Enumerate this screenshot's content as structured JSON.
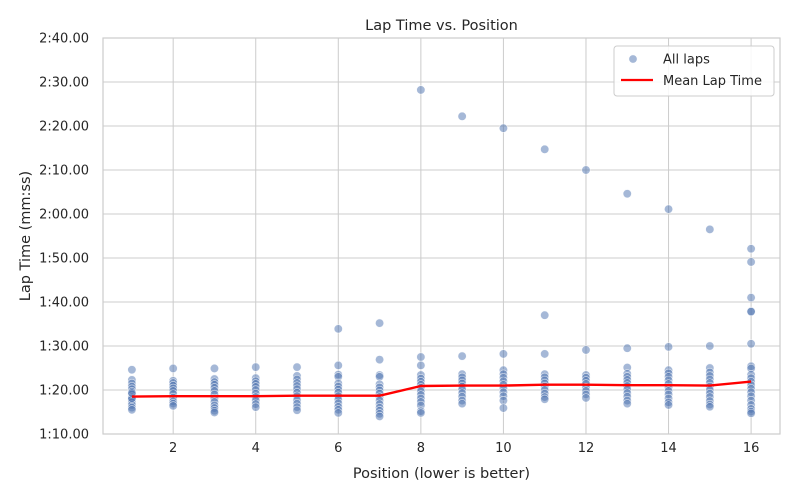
{
  "chart_data": {
    "type": "scatter",
    "title": "Lap Time vs. Position",
    "xlabel": "Position (lower is better)",
    "ylabel": "Lap Time (mm:ss)",
    "xlim": [
      0.3,
      16.7
    ],
    "ylim": [
      70,
      160
    ],
    "x_ticks": [
      2,
      4,
      6,
      8,
      10,
      12,
      14,
      16
    ],
    "y_ticks": [
      {
        "value": 70,
        "label": "1:10.00"
      },
      {
        "value": 80,
        "label": "1:20.00"
      },
      {
        "value": 90,
        "label": "1:30.00"
      },
      {
        "value": 100,
        "label": "1:40.00"
      },
      {
        "value": 110,
        "label": "1:50.00"
      },
      {
        "value": 120,
        "label": "2:00.00"
      },
      {
        "value": 130,
        "label": "2:10.00"
      },
      {
        "value": 140,
        "label": "2:20.00"
      },
      {
        "value": 150,
        "label": "2:30.00"
      },
      {
        "value": 160,
        "label": "2:40.00"
      }
    ],
    "grid": true,
    "legend": {
      "position": "top-right",
      "entries": [
        {
          "label": "All laps",
          "kind": "marker",
          "color": "#4c72b0"
        },
        {
          "label": "Mean Lap Time",
          "kind": "line",
          "color": "#ff0000"
        }
      ]
    },
    "series": [
      {
        "name": "All laps",
        "kind": "scatter",
        "color": "#4c72b0",
        "points": [
          [
            1,
            84.6
          ],
          [
            1,
            82.3
          ],
          [
            1,
            81.5
          ],
          [
            1,
            80.8
          ],
          [
            1,
            80.2
          ],
          [
            1,
            79.6
          ],
          [
            1,
            79.0
          ],
          [
            1,
            78.4
          ],
          [
            1,
            77.8
          ],
          [
            1,
            77.2
          ],
          [
            1,
            76.6
          ],
          [
            1,
            76.0
          ],
          [
            1,
            75.5
          ],
          [
            1,
            78.1
          ],
          [
            1,
            79.3
          ],
          [
            2,
            84.9
          ],
          [
            2,
            82.1
          ],
          [
            2,
            81.6
          ],
          [
            2,
            81.0
          ],
          [
            2,
            80.4
          ],
          [
            2,
            79.8
          ],
          [
            2,
            79.1
          ],
          [
            2,
            78.3
          ],
          [
            2,
            77.4
          ],
          [
            2,
            76.9
          ],
          [
            2,
            76.4
          ],
          [
            3,
            84.9
          ],
          [
            3,
            82.5
          ],
          [
            3,
            81.8
          ],
          [
            3,
            81.2
          ],
          [
            3,
            80.5
          ],
          [
            3,
            79.8
          ],
          [
            3,
            79.0
          ],
          [
            3,
            78.1
          ],
          [
            3,
            77.3
          ],
          [
            3,
            76.5
          ],
          [
            3,
            75.9
          ],
          [
            3,
            75.3
          ],
          [
            3,
            74.9
          ],
          [
            4,
            85.2
          ],
          [
            4,
            82.7
          ],
          [
            4,
            82.0
          ],
          [
            4,
            81.4
          ],
          [
            4,
            80.7
          ],
          [
            4,
            80.0
          ],
          [
            4,
            79.2
          ],
          [
            4,
            78.4
          ],
          [
            4,
            77.6
          ],
          [
            4,
            76.8
          ],
          [
            4,
            76.1
          ],
          [
            5,
            85.2
          ],
          [
            5,
            83.2
          ],
          [
            5,
            82.4
          ],
          [
            5,
            81.6
          ],
          [
            5,
            80.9
          ],
          [
            5,
            80.2
          ],
          [
            5,
            79.4
          ],
          [
            5,
            78.6
          ],
          [
            5,
            77.7
          ],
          [
            5,
            76.9
          ],
          [
            5,
            76.1
          ],
          [
            5,
            75.4
          ],
          [
            6,
            93.9
          ],
          [
            6,
            85.6
          ],
          [
            6,
            83.5
          ],
          [
            6,
            83.0
          ],
          [
            6,
            81.5
          ],
          [
            6,
            80.8
          ],
          [
            6,
            80.1
          ],
          [
            6,
            79.4
          ],
          [
            6,
            78.6
          ],
          [
            6,
            77.8
          ],
          [
            6,
            77.0
          ],
          [
            6,
            76.2
          ],
          [
            6,
            75.5
          ],
          [
            6,
            74.8
          ],
          [
            7,
            95.2
          ],
          [
            7,
            86.9
          ],
          [
            7,
            83.4
          ],
          [
            7,
            83.0
          ],
          [
            7,
            81.3
          ],
          [
            7,
            80.6
          ],
          [
            7,
            79.9
          ],
          [
            7,
            79.2
          ],
          [
            7,
            78.4
          ],
          [
            7,
            77.6
          ],
          [
            7,
            76.8
          ],
          [
            7,
            76.0
          ],
          [
            7,
            75.3
          ],
          [
            7,
            74.6
          ],
          [
            7,
            74.0
          ],
          [
            8,
            148.2
          ],
          [
            8,
            87.5
          ],
          [
            8,
            85.6
          ],
          [
            8,
            83.4
          ],
          [
            8,
            82.6
          ],
          [
            8,
            81.9
          ],
          [
            8,
            81.2
          ],
          [
            8,
            80.5
          ],
          [
            8,
            79.7
          ],
          [
            8,
            78.9
          ],
          [
            8,
            78.1
          ],
          [
            8,
            77.3
          ],
          [
            8,
            76.5
          ],
          [
            8,
            75.2
          ],
          [
            8,
            74.8
          ],
          [
            9,
            142.2
          ],
          [
            9,
            87.7
          ],
          [
            9,
            83.6
          ],
          [
            9,
            82.9
          ],
          [
            9,
            82.2
          ],
          [
            9,
            81.5
          ],
          [
            9,
            80.8
          ],
          [
            9,
            80.1
          ],
          [
            9,
            79.3
          ],
          [
            9,
            78.5
          ],
          [
            9,
            77.6
          ],
          [
            9,
            76.9
          ],
          [
            10,
            139.5
          ],
          [
            10,
            88.2
          ],
          [
            10,
            84.5
          ],
          [
            10,
            83.6
          ],
          [
            10,
            82.8
          ],
          [
            10,
            82.0
          ],
          [
            10,
            81.2
          ],
          [
            10,
            80.4
          ],
          [
            10,
            79.5
          ],
          [
            10,
            78.6
          ],
          [
            10,
            77.6
          ],
          [
            10,
            75.9
          ],
          [
            11,
            134.7
          ],
          [
            11,
            97.0
          ],
          [
            11,
            88.2
          ],
          [
            11,
            83.6
          ],
          [
            11,
            82.9
          ],
          [
            11,
            82.2
          ],
          [
            11,
            81.5
          ],
          [
            11,
            80.8
          ],
          [
            11,
            80.0
          ],
          [
            11,
            79.2
          ],
          [
            11,
            78.4
          ],
          [
            11,
            77.9
          ],
          [
            12,
            130.0
          ],
          [
            12,
            89.1
          ],
          [
            12,
            83.4
          ],
          [
            12,
            82.8
          ],
          [
            12,
            82.1
          ],
          [
            12,
            81.4
          ],
          [
            12,
            80.6
          ],
          [
            12,
            79.8
          ],
          [
            12,
            79.0
          ],
          [
            12,
            78.2
          ],
          [
            13,
            124.6
          ],
          [
            13,
            89.5
          ],
          [
            13,
            85.1
          ],
          [
            13,
            83.7
          ],
          [
            13,
            83.0
          ],
          [
            13,
            82.3
          ],
          [
            13,
            81.6
          ],
          [
            13,
            80.9
          ],
          [
            13,
            80.1
          ],
          [
            13,
            79.3
          ],
          [
            13,
            78.5
          ],
          [
            13,
            77.6
          ],
          [
            13,
            76.9
          ],
          [
            14,
            121.1
          ],
          [
            14,
            89.8
          ],
          [
            14,
            84.5
          ],
          [
            14,
            83.8
          ],
          [
            14,
            83.0
          ],
          [
            14,
            82.2
          ],
          [
            14,
            81.4
          ],
          [
            14,
            80.6
          ],
          [
            14,
            79.8
          ],
          [
            14,
            79.0
          ],
          [
            14,
            78.1
          ],
          [
            14,
            77.2
          ],
          [
            14,
            76.6
          ],
          [
            15,
            116.5
          ],
          [
            15,
            90.0
          ],
          [
            15,
            85.0
          ],
          [
            15,
            84.0
          ],
          [
            15,
            83.2
          ],
          [
            15,
            82.4
          ],
          [
            15,
            81.6
          ],
          [
            15,
            80.8
          ],
          [
            15,
            80.0
          ],
          [
            15,
            79.2
          ],
          [
            15,
            78.4
          ],
          [
            15,
            77.5
          ],
          [
            15,
            76.7
          ],
          [
            15,
            76.2
          ],
          [
            16,
            112.1
          ],
          [
            16,
            109.1
          ],
          [
            16,
            101.0
          ],
          [
            16,
            97.9
          ],
          [
            16,
            97.8
          ],
          [
            16,
            90.5
          ],
          [
            16,
            85.4
          ],
          [
            16,
            84.9
          ],
          [
            16,
            83.5
          ],
          [
            16,
            82.7
          ],
          [
            16,
            81.9
          ],
          [
            16,
            81.1
          ],
          [
            16,
            80.3
          ],
          [
            16,
            79.5
          ],
          [
            16,
            78.6
          ],
          [
            16,
            77.6
          ],
          [
            16,
            76.6
          ],
          [
            16,
            75.7
          ],
          [
            16,
            75.1
          ],
          [
            16,
            74.7
          ]
        ]
      },
      {
        "name": "Mean Lap Time",
        "kind": "line",
        "color": "#ff0000",
        "x": [
          1,
          2,
          3,
          4,
          5,
          6,
          7,
          8,
          9,
          10,
          11,
          12,
          13,
          14,
          15,
          16
        ],
        "y": [
          78.5,
          78.6,
          78.6,
          78.6,
          78.7,
          78.7,
          78.7,
          80.9,
          81.0,
          81.0,
          81.2,
          81.2,
          81.1,
          81.1,
          81.0,
          81.9
        ]
      }
    ]
  }
}
